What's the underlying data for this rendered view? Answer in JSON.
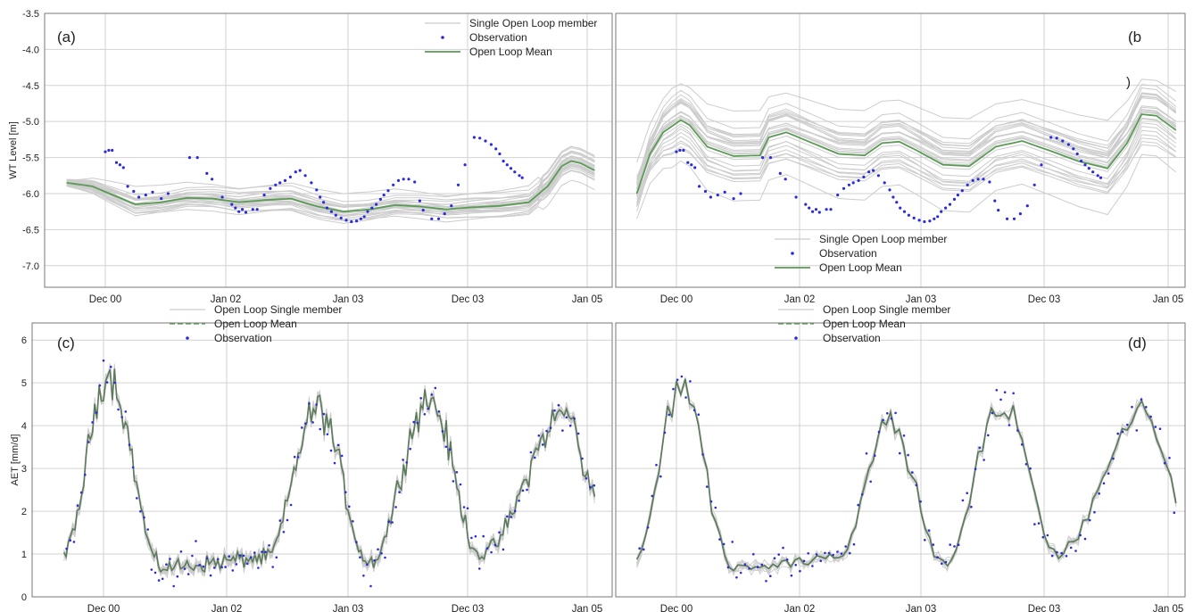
{
  "colors": {
    "member": "#cccccc",
    "mean": "#5a9a55",
    "mean_aet": "#5c7a5c",
    "observation": "#2b2bd9",
    "grid": "#d2d2d2",
    "frame": "#777777"
  },
  "chart_data": [
    {
      "panel_label": "(a)",
      "type": "line",
      "ylabel": "WT Level [m]",
      "ylim": [
        -7.3,
        -3.5
      ],
      "yticks": [
        -3.5,
        -4.0,
        -4.5,
        -5.0,
        -5.5,
        -6.0,
        -6.5,
        -7.0
      ],
      "xticks": [
        "Dec 00",
        "Jan 02",
        "Jan 03",
        "Dec 03",
        "Jan 05"
      ],
      "x_range_months": [
        0,
        60
      ],
      "legend": [
        {
          "label": "Single Open Loop member",
          "kind": "line",
          "color": "#cccccc"
        },
        {
          "label": "Observation",
          "kind": "dot",
          "color": "#2b2bd9"
        },
        {
          "label": "Open Loop Mean",
          "kind": "line",
          "color": "#5a9a55"
        }
      ],
      "legend_position": "top-right",
      "grid": true,
      "series": [
        {
          "role": "mean",
          "x": [
            0,
            3,
            5,
            8,
            11,
            14,
            17,
            20,
            23,
            26,
            29,
            32,
            35,
            38,
            41,
            44,
            47,
            50,
            53,
            55,
            56.5,
            57.5,
            58.5,
            60
          ],
          "y": [
            -5.85,
            -5.9,
            -6.0,
            -6.15,
            -6.12,
            -6.06,
            -6.07,
            -6.12,
            -6.09,
            -6.07,
            -6.18,
            -6.25,
            -6.22,
            -6.16,
            -6.18,
            -6.22,
            -6.19,
            -6.17,
            -6.12,
            -5.9,
            -5.62,
            -5.55,
            -5.58,
            -5.68
          ]
        },
        {
          "role": "observation",
          "x": [
            4.5,
            4.9,
            5.3,
            5.8,
            6.2,
            6.6,
            7.1,
            7.8,
            8.4,
            9.2,
            10,
            11,
            11.8,
            14.3,
            15.2,
            16.3,
            16.9,
            18.1,
            19.2,
            19.6,
            20,
            20.4,
            20.8,
            21.6,
            22.1,
            22.9,
            23.6,
            24.2,
            24.7,
            25.3,
            25.9,
            26.5,
            27,
            27.6,
            28.3,
            28.9,
            29.3,
            29.7,
            30.1,
            30.6,
            31.1,
            31.7,
            32.3,
            32.9,
            33.5,
            34,
            34.4,
            34.8,
            35.3,
            35.8,
            36.3,
            36.7,
            37.2,
            37.8,
            38.4,
            39,
            39.6,
            40.3,
            40.9,
            41.3,
            42.3,
            43.1,
            43.8,
            44.6,
            45.4,
            46.2,
            47.2,
            47.8,
            48.4,
            49,
            49.5,
            49.9,
            50.3,
            50.7,
            51.1,
            51.5,
            52,
            52.3
          ],
          "y": [
            -5.42,
            -5.4,
            -5.4,
            -5.57,
            -5.6,
            -5.64,
            -5.9,
            -5.97,
            -6.05,
            -6.02,
            -5.98,
            -6.07,
            -6.0,
            -5.5,
            -5.5,
            -5.72,
            -5.8,
            -6.05,
            -6.15,
            -6.2,
            -6.25,
            -6.22,
            -6.26,
            -6.22,
            -6.22,
            -6.02,
            -5.93,
            -5.88,
            -5.85,
            -5.82,
            -5.77,
            -5.7,
            -5.68,
            -5.75,
            -5.85,
            -5.95,
            -6.05,
            -6.12,
            -6.2,
            -6.25,
            -6.3,
            -6.34,
            -6.37,
            -6.39,
            -6.38,
            -6.35,
            -6.32,
            -6.25,
            -6.2,
            -6.15,
            -6.08,
            -6.02,
            -5.96,
            -5.88,
            -5.82,
            -5.8,
            -5.8,
            -5.84,
            -6.1,
            -6.23,
            -6.35,
            -6.35,
            -6.28,
            -6.17,
            -5.88,
            -5.6,
            -5.22,
            -5.23,
            -5.27,
            -5.32,
            -5.38,
            -5.45,
            -5.55,
            -5.6,
            -5.65,
            -5.7,
            -5.75,
            -5.78
          ]
        }
      ]
    },
    {
      "panel_label": "(b",
      "panel_label_extra": ")",
      "type": "line",
      "ylim": [
        -7.3,
        -3.5
      ],
      "yticks": [
        -3.5,
        -4.0,
        -4.5,
        -5.0,
        -5.5,
        -6.0,
        -6.5,
        -7.0
      ],
      "xticks": [
        "Dec 00",
        "Jan 02",
        "Jan 03",
        "Dec 03",
        "Jan 05"
      ],
      "x_range_months": [
        0,
        60
      ],
      "legend": [
        {
          "label": "Single Open Loop member",
          "kind": "line",
          "color": "#cccccc"
        },
        {
          "label": "Observation",
          "kind": "dot",
          "color": "#2b2bd9"
        },
        {
          "label": "Open Loop Mean",
          "kind": "line",
          "color": "#5a9a55"
        }
      ],
      "legend_position": "bottom-center",
      "grid": true,
      "series": [
        {
          "role": "mean",
          "x": [
            0,
            1.5,
            3,
            5,
            6,
            8,
            11,
            14,
            15,
            17,
            20,
            23,
            26,
            28,
            30,
            32,
            35,
            38,
            41,
            44,
            47,
            50,
            53,
            55,
            56.5,
            58,
            60
          ],
          "y": [
            -6.0,
            -5.45,
            -5.15,
            -4.98,
            -5.05,
            -5.35,
            -5.48,
            -5.47,
            -5.22,
            -5.15,
            -5.3,
            -5.45,
            -5.47,
            -5.3,
            -5.28,
            -5.4,
            -5.6,
            -5.62,
            -5.35,
            -5.27,
            -5.4,
            -5.55,
            -5.65,
            -5.3,
            -4.9,
            -4.92,
            -5.12
          ]
        },
        {
          "role": "observation",
          "x": [
            4.5,
            4.9,
            5.3,
            5.8,
            6.2,
            6.6,
            7.1,
            7.8,
            8.4,
            9.2,
            10,
            11,
            11.8,
            14.3,
            15.2,
            16.3,
            16.9,
            18.1,
            19.2,
            19.6,
            20,
            20.4,
            20.8,
            21.6,
            22.1,
            22.9,
            23.6,
            24.2,
            24.7,
            25.3,
            25.9,
            26.5,
            27,
            27.6,
            28.3,
            28.9,
            29.3,
            29.7,
            30.1,
            30.6,
            31.1,
            31.7,
            32.3,
            32.9,
            33.5,
            34,
            34.4,
            34.8,
            35.3,
            35.8,
            36.3,
            36.7,
            37.2,
            37.8,
            38.4,
            39,
            39.6,
            40.3,
            40.9,
            41.3,
            42.3,
            43.1,
            43.8,
            44.6,
            45.4,
            46.2,
            47.2,
            47.8,
            48.4,
            49,
            49.5,
            49.9,
            50.3,
            50.7,
            51.1,
            51.5,
            52,
            52.3
          ],
          "y": [
            -5.42,
            -5.4,
            -5.4,
            -5.57,
            -5.6,
            -5.64,
            -5.9,
            -5.97,
            -6.05,
            -6.02,
            -5.98,
            -6.07,
            -6.0,
            -5.5,
            -5.5,
            -5.72,
            -5.8,
            -6.05,
            -6.15,
            -6.2,
            -6.25,
            -6.22,
            -6.26,
            -6.22,
            -6.22,
            -6.02,
            -5.93,
            -5.88,
            -5.85,
            -5.82,
            -5.77,
            -5.7,
            -5.68,
            -5.75,
            -5.85,
            -5.95,
            -6.05,
            -6.12,
            -6.2,
            -6.25,
            -6.3,
            -6.34,
            -6.37,
            -6.39,
            -6.38,
            -6.35,
            -6.32,
            -6.25,
            -6.2,
            -6.15,
            -6.08,
            -6.02,
            -5.96,
            -5.88,
            -5.82,
            -5.8,
            -5.8,
            -5.84,
            -6.1,
            -6.23,
            -6.35,
            -6.35,
            -6.28,
            -6.17,
            -5.88,
            -5.6,
            -5.22,
            -5.23,
            -5.27,
            -5.32,
            -5.38,
            -5.45,
            -5.55,
            -5.6,
            -5.65,
            -5.7,
            -5.75,
            -5.78
          ]
        }
      ]
    },
    {
      "panel_label": "(c)",
      "type": "line",
      "ylabel": "AET [mm/d]",
      "ylim": [
        0,
        6.4
      ],
      "yticks": [
        0,
        1,
        2,
        3,
        4,
        5,
        6
      ],
      "xticks": [
        "Dec 00",
        "Jan 02",
        "Jan 03",
        "Dec 03",
        "Jan 05"
      ],
      "x_range_months": [
        0,
        60
      ],
      "legend": [
        {
          "label": "Open Loop Single member",
          "kind": "line",
          "color": "#cccccc"
        },
        {
          "label": "Open Loop Mean",
          "kind": "dash",
          "color": "#5a9a55"
        },
        {
          "label": "Observation",
          "kind": "dot",
          "color": "#2b2bd9"
        }
      ],
      "legend_position": "top-center",
      "grid": true,
      "seasonal_model": {
        "peak_months": [
          5,
          29,
          42,
          57
        ],
        "trough_months": [
          11,
          23,
          35,
          48
        ],
        "peak_values": [
          5.2,
          4.4,
          4.6,
          4.3
        ],
        "trough_values": [
          0.7,
          0.9,
          0.8,
          1.0
        ]
      }
    },
    {
      "panel_label": "(d)",
      "type": "line",
      "ylim": [
        0,
        6.4
      ],
      "yticks": [
        0,
        1,
        2,
        3,
        4,
        5,
        6
      ],
      "xticks": [
        "Dec 00",
        "Jan 02",
        "Jan 03",
        "Dec 03",
        "Jan 05"
      ],
      "x_range_months": [
        0,
        60
      ],
      "legend": [
        {
          "label": "Open Loop Single member",
          "kind": "line",
          "color": "#cccccc"
        },
        {
          "label": "Open Loop Mean",
          "kind": "dash",
          "color": "#5a9a55"
        },
        {
          "label": "Observation",
          "kind": "dot",
          "color": "#2b2bd9"
        }
      ],
      "legend_position": "top-left",
      "grid": true,
      "seasonal_model": {
        "peak_months": [
          5,
          29,
          42,
          57
        ],
        "trough_months": [
          11,
          23,
          35,
          48
        ],
        "peak_values": [
          5.0,
          4.2,
          4.5,
          4.4
        ],
        "trough_values": [
          0.7,
          0.9,
          0.8,
          1.0
        ]
      }
    }
  ]
}
